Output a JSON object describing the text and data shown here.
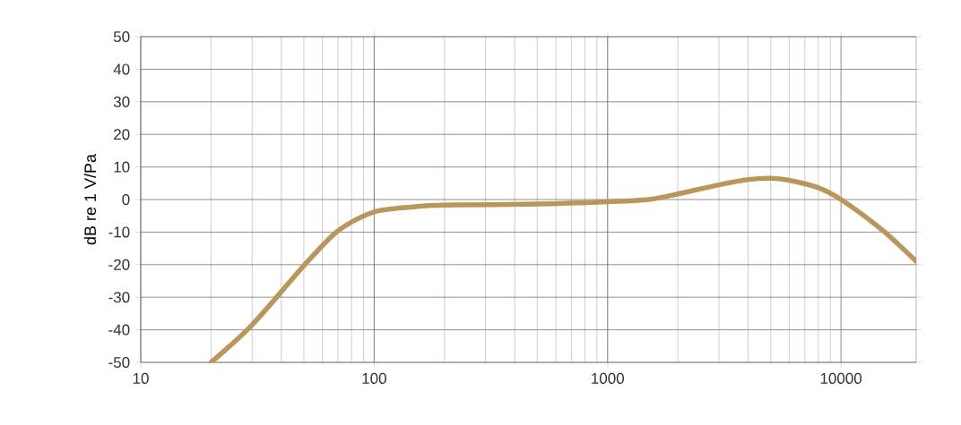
{
  "chart_data": {
    "type": "line",
    "ylabel": "dB re 1 V/Pa",
    "log": "x",
    "grid": true,
    "marker": "none",
    "line_style": "solid",
    "x": [
      20,
      30,
      50,
      70,
      100,
      150,
      200,
      500,
      1000,
      1500,
      2000,
      3000,
      4000,
      5000,
      6000,
      8000,
      10000,
      15000,
      20000,
      21000
    ],
    "series": [
      {
        "color": "#b9975b",
        "values": [
          -50,
          -38.5,
          -20.3,
          -9.6,
          -3.8,
          -2.2,
          -1.7,
          -1.4,
          -0.7,
          0,
          1.7,
          4.5,
          6.1,
          6.5,
          5.9,
          3.6,
          0,
          -9.3,
          -17.5,
          -19
        ]
      }
    ],
    "xlim": [
      10,
      21000
    ],
    "ylim": [
      -50,
      50
    ],
    "xticks": [
      10,
      100,
      1000,
      10000
    ],
    "yticks": [
      -50,
      -40,
      -30,
      -20,
      -10,
      0,
      10,
      20,
      30,
      40,
      50
    ]
  }
}
